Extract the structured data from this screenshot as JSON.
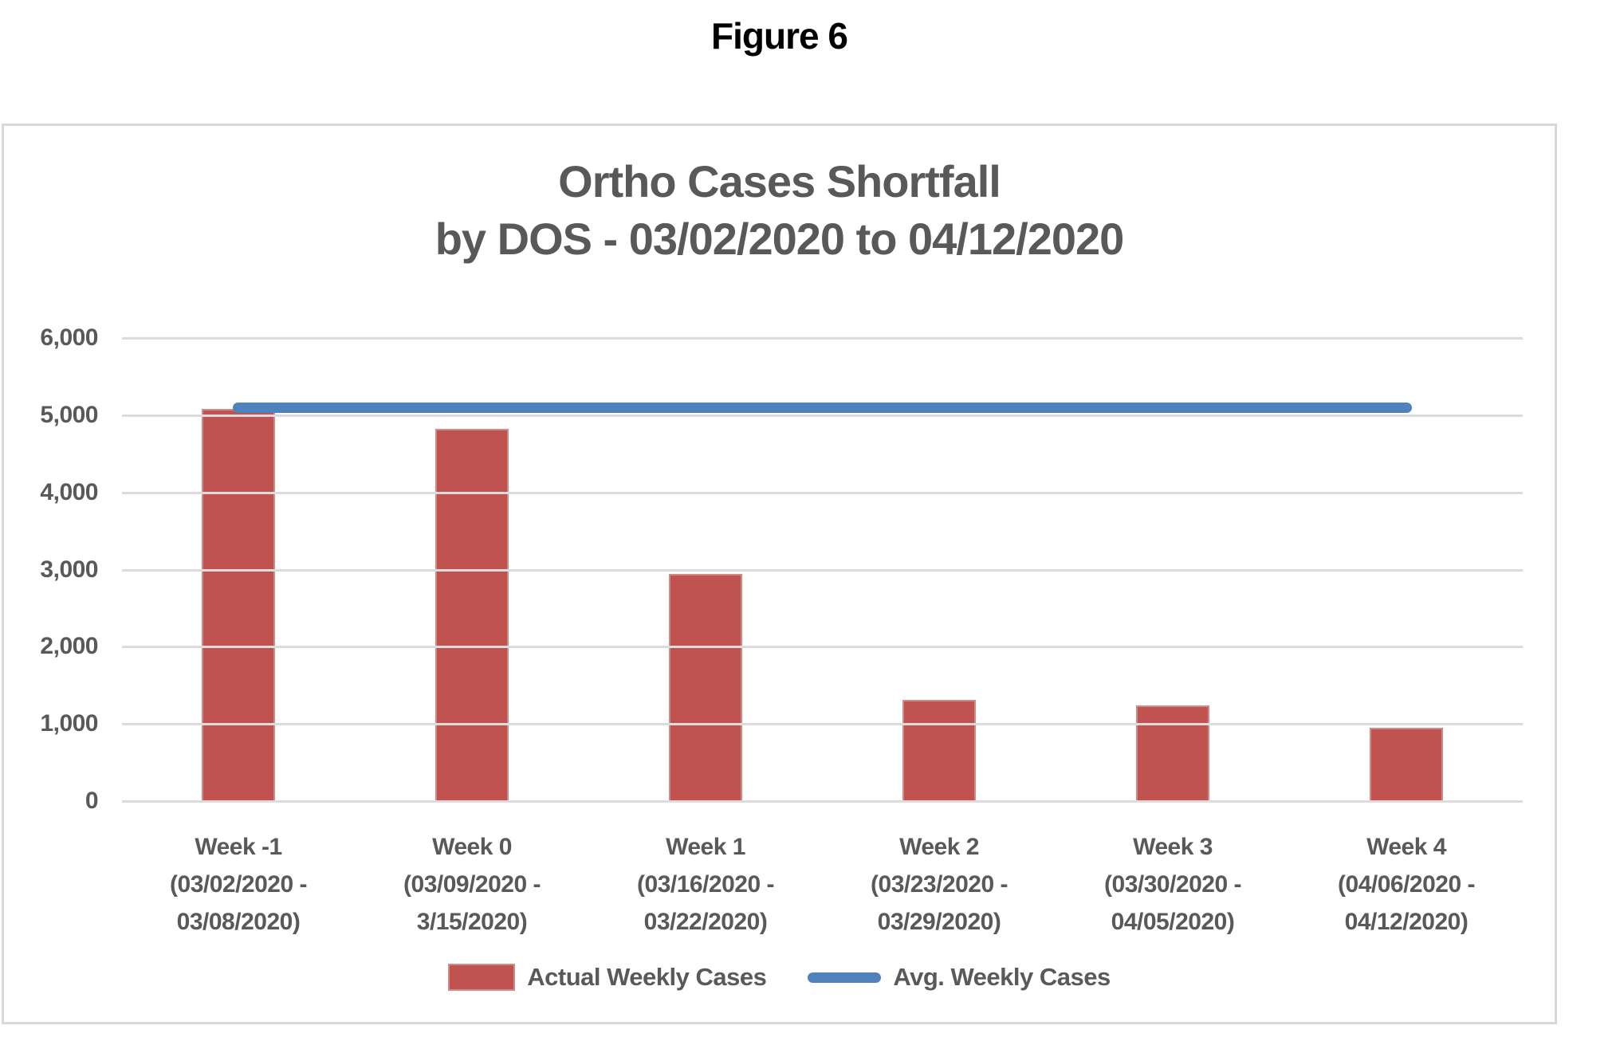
{
  "figure_label": "Figure 6",
  "chart_data": {
    "type": "bar",
    "title": "Ortho Cases Shortfall by DOS - 03/02/2020 to 04/12/2020",
    "title_lines": [
      "Ortho Cases Shortfall",
      "by DOS - 03/02/2020 to 04/12/2020"
    ],
    "categories": [
      [
        "Week -1",
        "(03/02/2020 -",
        "03/08/2020)"
      ],
      [
        "Week 0",
        "(03/09/2020 -",
        "3/15/2020)"
      ],
      [
        "Week 1",
        "(03/16/2020 -",
        "03/22/2020)"
      ],
      [
        "Week 2",
        "(03/23/2020 -",
        "03/29/2020)"
      ],
      [
        "Week 3",
        "(03/30/2020 -",
        "04/05/2020)"
      ],
      [
        "Week 4",
        "(04/06/2020 -",
        "04/12/2020)"
      ]
    ],
    "series": [
      {
        "name": "Actual Weekly Cases",
        "type": "bar",
        "color": "#C05350",
        "values": [
          5080,
          4820,
          2940,
          1310,
          1240,
          950
        ]
      },
      {
        "name": "Avg. Weekly Cases",
        "type": "line",
        "color": "#4F81BD",
        "values": [
          5100,
          5100,
          5100,
          5100,
          5100,
          5100
        ]
      }
    ],
    "xlabel": "",
    "ylabel": "",
    "ylim": [
      0,
      6000
    ],
    "ytick_step": 1000,
    "ytick_labels": [
      "0",
      "1,000",
      "2,000",
      "3,000",
      "4,000",
      "5,000",
      "6,000"
    ],
    "grid": true,
    "legend_position": "bottom"
  },
  "colors": {
    "bar": "#C05350",
    "bar_border": "#CE8B88",
    "line": "#4F81BD",
    "gridline": "#DCDCDC",
    "box_border": "#D8D8D8",
    "text": "#595959",
    "figure_text": "#000000"
  }
}
